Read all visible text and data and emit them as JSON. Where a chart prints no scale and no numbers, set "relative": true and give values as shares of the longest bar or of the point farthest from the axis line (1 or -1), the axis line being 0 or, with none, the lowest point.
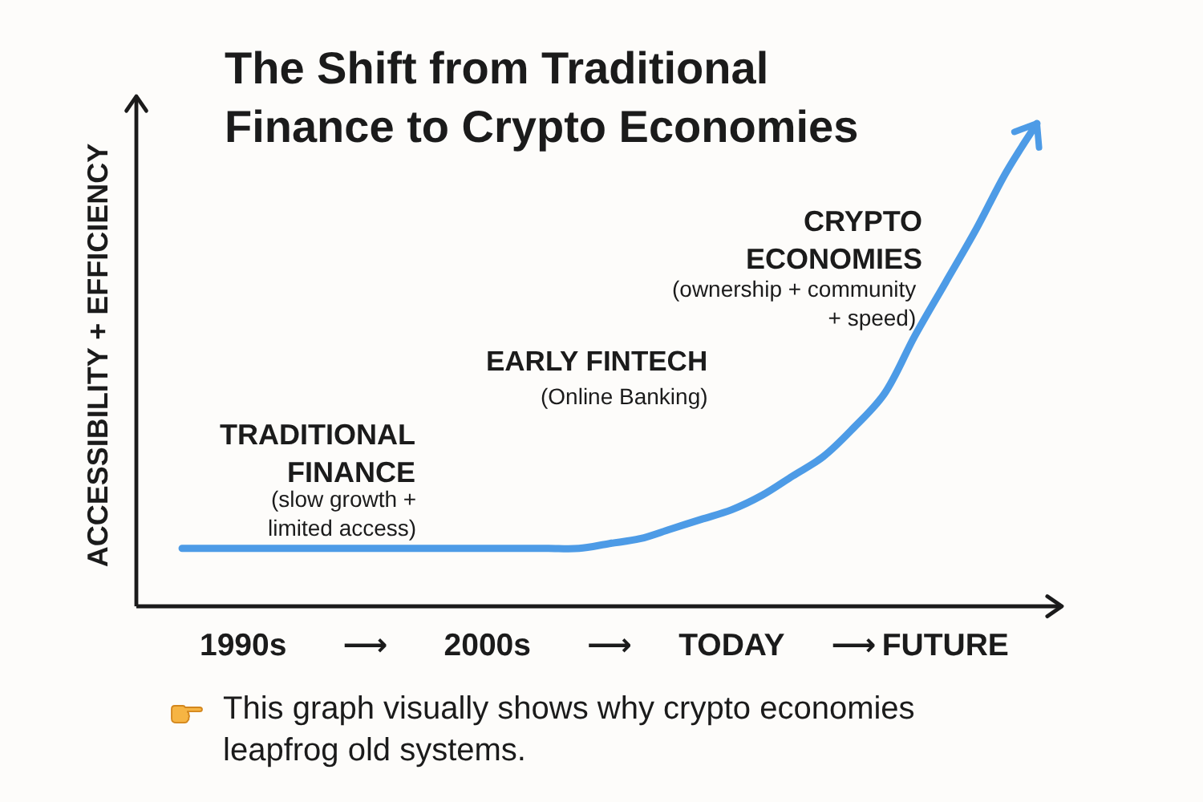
{
  "chart_data": {
    "type": "line",
    "title": "The Shift from Traditional Finance to Crypto Economies",
    "ylabel": "ACCESSIBILITY + EFFICIENCY",
    "categories": [
      null,
      null,
      "1990s",
      null,
      null,
      null,
      "⟶",
      null,
      null,
      null,
      "2000s",
      null,
      null,
      null,
      "⟶",
      null,
      null,
      null,
      "TODAY",
      null,
      null,
      null,
      "⟶",
      null,
      null,
      "FUTURE",
      null,
      null,
      null
    ],
    "relative": true,
    "series": [
      {
        "color": "#4d9be6",
        "values": [
          0.12,
          0.12,
          0.12,
          0.12,
          0.12,
          0.12,
          0.12,
          0.12,
          0.12,
          0.12,
          0.12,
          0.12,
          0.12,
          0.12,
          0.13,
          0.14,
          0.16,
          0.18,
          0.2,
          0.23,
          0.27,
          0.31,
          0.37,
          0.44,
          0.56,
          0.67,
          0.78,
          0.9,
          1
        ]
      }
    ],
    "annotations": [
      "TRADITIONAL FINANCE",
      "(slow growth + limited access)",
      "EARLY FINTECH",
      "(Online Banking)",
      "CRYPTO ECONOMIES",
      "(ownership + community + speed)",
      "This graph visually shows why crypto economies leapfrog old systems."
    ]
  }
}
